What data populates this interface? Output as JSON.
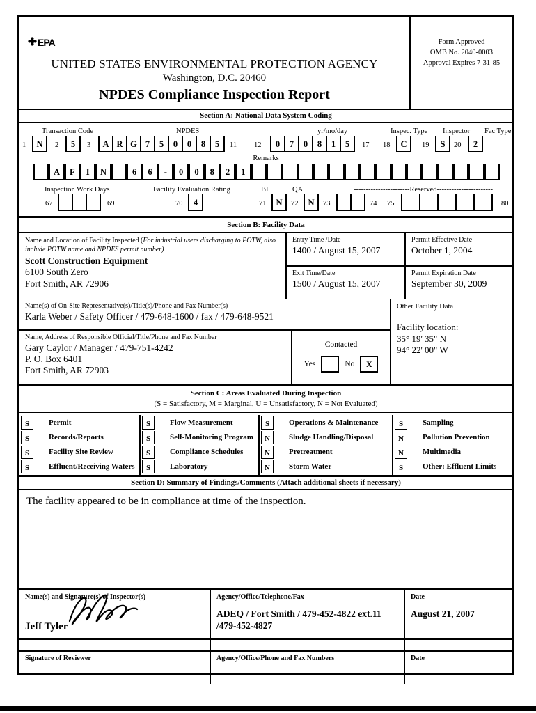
{
  "header": {
    "epa_text": "EPA",
    "agency_line": "UNITED STATES ENVIRONMENTAL PROTECTION AGENCY",
    "address_line": "Washington, D.C. 20460",
    "title": "NPDES Compliance Inspection Report",
    "form_approved": "Form Approved",
    "omb_no": "OMB No. 2040-0003",
    "expires": "Approval Expires 7-31-85"
  },
  "section_a": {
    "title": "Section A: National Data System Coding",
    "labels": {
      "transaction_code": "Transaction Code",
      "npdes": "NPDES",
      "yrmoday": "yr/mo/day",
      "inspec_type": "Inspec. Type",
      "inspector": "Inspector",
      "fac_type": "Fac Type",
      "remarks": "Remarks",
      "work_days": "Inspection Work Days",
      "rating": "Facility Evaluation Rating",
      "bi": "BI",
      "qa": "QA",
      "reserved": "-----------------------Reserved-----------------------"
    },
    "positions": {
      "p1": "1",
      "p2": "2",
      "p3": "3",
      "p11": "11",
      "p12": "12",
      "p17": "17",
      "p18": "18",
      "p19": "19",
      "p20": "20",
      "p67": "67",
      "p69": "69",
      "p70": "70",
      "p71": "71",
      "p72": "72",
      "p73": "73",
      "p74": "74",
      "p75": "75",
      "p80": "80"
    },
    "transaction_cell": "N",
    "transaction_cell2": "5",
    "npdes_cells": [
      "A",
      "R",
      "G",
      "7",
      "5",
      "0",
      "0",
      "8",
      "5"
    ],
    "date_cells": [
      "0",
      "7",
      "0",
      "8",
      "1",
      "5"
    ],
    "inspec_type_cell": "C",
    "inspector_cell": "S",
    "fac_type_cell": "2",
    "remarks_cells": [
      "",
      "A",
      "F",
      "I",
      "N",
      "",
      "6",
      "6",
      "-",
      "0",
      "0",
      "8",
      "2",
      "1",
      "",
      "",
      "",
      "",
      "",
      "",
      "",
      "",
      "",
      "",
      "",
      "",
      "",
      "",
      "",
      ""
    ],
    "rating_cell": "4",
    "bi_cell": "N",
    "qa_cell": "N"
  },
  "section_b": {
    "title": "Section B: Facility Data",
    "facility_label_main": "Name and Location of Facility Inspected (",
    "facility_label_italic": "For industrial users discharging to POTW, also include POTW name and NPDES permit number)",
    "facility_name": "Scott Construction Equipment",
    "facility_addr1": "6100 South Zero",
    "facility_addr2": "Fort Smith, AR 72906",
    "entry_label": "Entry Time /Date",
    "entry_value": "1400 / August 15, 2007",
    "exit_label": "Exit Time/Date",
    "exit_value": "1500 / August 15, 2007",
    "effective_label": "Permit Effective Date",
    "effective_value": "October 1, 2004",
    "expiration_label": "Permit Expiration Date",
    "expiration_value": "September 30, 2009",
    "onsite_label": "Name(s) of On-Site Representative(s)/Title(s)/Phone and Fax Number(s)",
    "onsite_value": "Karla Weber / Safety Officer / 479-648-1600 / fax / 479-648-9521",
    "official_label": "Name, Address of Responsible Official/Title/Phone and Fax Number",
    "official_name": "Gary Caylor / Manager / 479-751-4242",
    "official_addr1": "P. O. Box 6401",
    "official_addr2": "Fort Smith, AR  72903",
    "contacted_label": "Contacted",
    "yes_label": "Yes",
    "no_label": "No",
    "no_value": "X",
    "other_label": "Other Facility Data",
    "location_label": "Facility location:",
    "lat": "35° 19' 35\" N",
    "lon": "94° 22' 00\" W"
  },
  "section_c": {
    "title": "Section C: Areas Evaluated During Inspection",
    "subtitle": "(S = Satisfactory, M = Marginal, U = Unsatisfactory, N = Not Evaluated)",
    "columns": [
      {
        "items": [
          {
            "rating": "S",
            "label": "Permit"
          },
          {
            "rating": "S",
            "label": "Records/Reports"
          },
          {
            "rating": "S",
            "label": "Facility Site Review"
          },
          {
            "rating": "S",
            "label": "Effluent/Receiving Waters"
          }
        ]
      },
      {
        "items": [
          {
            "rating": "S",
            "label": "Flow Measurement"
          },
          {
            "rating": "S",
            "label": "Self-Monitoring Program"
          },
          {
            "rating": "S",
            "label": "Compliance Schedules"
          },
          {
            "rating": "S",
            "label": "Laboratory"
          }
        ]
      },
      {
        "items": [
          {
            "rating": "S",
            "label": "Operations & Maintenance"
          },
          {
            "rating": "N",
            "label": "Sludge Handling/Disposal"
          },
          {
            "rating": "N",
            "label": "Pretreatment"
          },
          {
            "rating": "N",
            "label": "Storm Water"
          }
        ]
      },
      {
        "items": [
          {
            "rating": "S",
            "label": "Sampling"
          },
          {
            "rating": "N",
            "label": "Pollution Prevention"
          },
          {
            "rating": "N",
            "label": "Multimedia"
          },
          {
            "rating": "S",
            "label": "Other: Effluent Limits"
          }
        ]
      }
    ]
  },
  "section_d": {
    "title": "Section D: Summary of Findings/Comments (Attach additional sheets if necessary)",
    "comment": "The facility appeared to be in compliance at time of the inspection."
  },
  "signature": {
    "inspector_label": "Name(s) and Signature(s) of Inspector(s)",
    "inspector_name": "Jeff Tyler",
    "agency_label": "Agency/Office/Telephone/Fax",
    "agency_value": "ADEQ / Fort Smith / 479-452-4822  ext.11 /479-452-4827",
    "date_label": "Date",
    "date_value": "August 21, 2007",
    "reviewer_label": "Signature of Reviewer",
    "reviewer_agency_label": "Agency/Office/Phone and Fax Numbers",
    "reviewer_date_label": "Date"
  }
}
